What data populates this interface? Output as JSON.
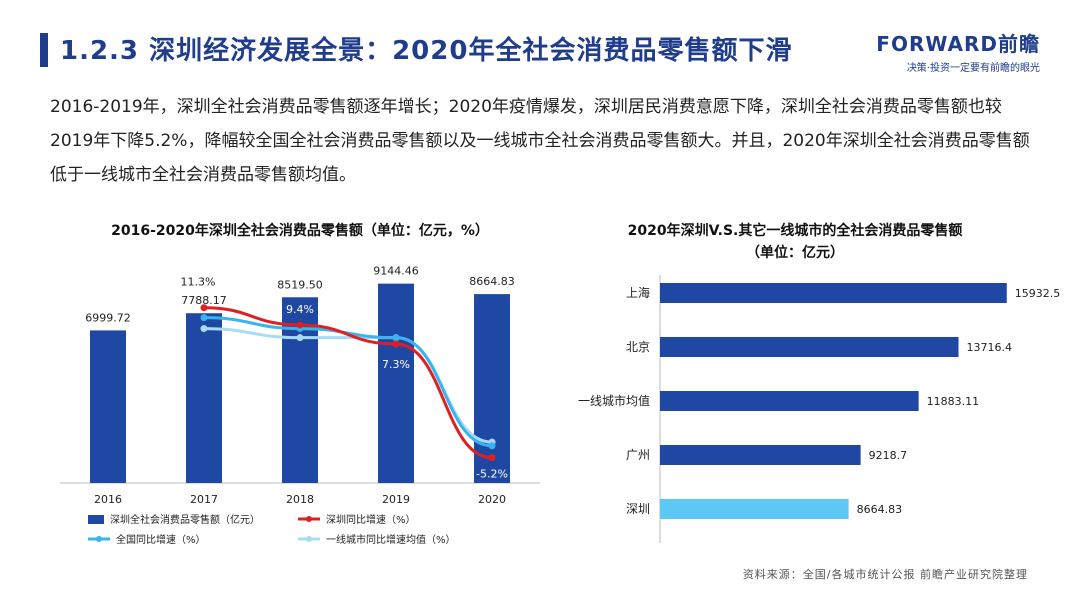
{
  "header": {
    "title": "1.2.3 深圳经济发展全景：2020年全社会消费品零售额下滑",
    "logo_name": "FORWARD前瞻",
    "logo_slogan": "决策·投资一定要有前瞻的眼光"
  },
  "summary": "2016-2019年，深圳全社会消费品零售额逐年增长；2020年疫情爆发，深圳居民消费意愿下降，深圳全社会消费品零售额也较2019年下降5.2%，降幅较全国全社会消费品零售额以及一线城市全社会消费品零售额大。并且，2020年深圳全社会消费品零售额低于一线城市全社会消费品零售额均值。",
  "source": "资料来源：全国/各城市统计公报  前瞻产业研究院整理",
  "chart_data": [
    {
      "type": "bar",
      "title": "2016-2020年深圳全社会消费品零售额（单位：亿元，%）",
      "categories": [
        "2016",
        "2017",
        "2018",
        "2019",
        "2020"
      ],
      "series": [
        {
          "name": "深圳全社会消费品零售额（亿元）",
          "type": "bar",
          "color": "#1f48a5",
          "values": [
            6999.72,
            7788.17,
            8519.5,
            9144.46,
            8664.83
          ],
          "labels": [
            "6999.72",
            "7788.17",
            "8519.50",
            "9144.46",
            "8664.83"
          ]
        },
        {
          "name": "深圳同比增速（%）",
          "type": "line",
          "color": "#e02020",
          "values": [
            null,
            11.3,
            9.4,
            7.3,
            -5.2
          ],
          "labels": [
            "",
            "11.3%",
            "9.4%",
            "7.3%",
            "-5.2%"
          ]
        },
        {
          "name": "全国同比增速（%）",
          "type": "line",
          "color": "#3ab4ee",
          "values": [
            null,
            10.2,
            9.0,
            8.0,
            -3.9
          ]
        },
        {
          "name": "一线城市同比增速均值（%）",
          "type": "line",
          "color": "#a8dcf2",
          "values": [
            null,
            9.0,
            8.0,
            8.0,
            -3.5
          ]
        }
      ],
      "bar_ylim": [
        0,
        10000
      ],
      "line_ylim": [
        -8,
        16
      ]
    },
    {
      "type": "bar",
      "orientation": "horizontal",
      "title": "2020年深圳V.S.其它一线城市的全社会消费品零售额",
      "subtitle": "（单位：亿元）",
      "categories": [
        "上海",
        "北京",
        "一线城市均值",
        "广州",
        "深圳"
      ],
      "values": [
        15932.5,
        13716.4,
        11883.11,
        9218.7,
        8664.83
      ],
      "labels": [
        "15932.5",
        "13716.4",
        "11883.11",
        "9218.7",
        "8664.83"
      ],
      "colors": [
        "#1f48a5",
        "#1f48a5",
        "#1f48a5",
        "#1f48a5",
        "#5bc8f5"
      ],
      "xlim": [
        0,
        17000
      ]
    }
  ]
}
